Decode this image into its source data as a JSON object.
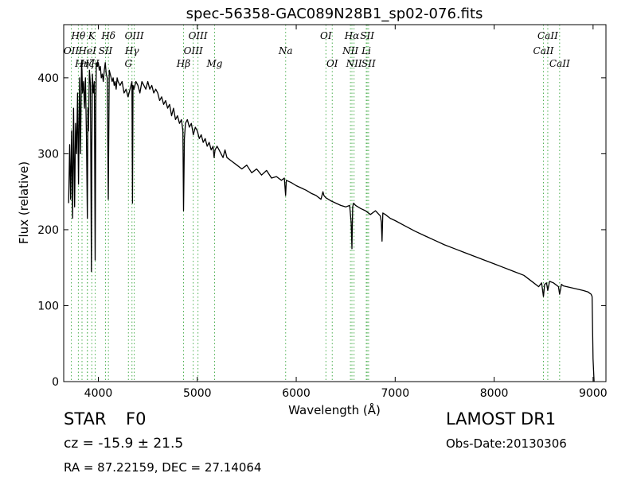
{
  "chart_data": {
    "type": "line",
    "title": "spec-56358-GAC089N28B1_sp02-076.fits",
    "xlabel": "Wavelength (Å)",
    "ylabel": "Flux (relative)",
    "xlim": [
      3650,
      9130
    ],
    "ylim": [
      0,
      470
    ],
    "xticks": [
      4000,
      5000,
      6000,
      7000,
      8000,
      9000
    ],
    "yticks": [
      0,
      100,
      200,
      300,
      400
    ],
    "grid": false,
    "legend": "none",
    "series": [
      {
        "color": "#000000",
        "x": [
          3700,
          3710,
          3720,
          3730,
          3740,
          3750,
          3760,
          3770,
          3780,
          3790,
          3800,
          3810,
          3820,
          3830,
          3835,
          3840,
          3850,
          3860,
          3870,
          3880,
          3889,
          3895,
          3900,
          3910,
          3920,
          3930,
          3934,
          3940,
          3950,
          3960,
          3968,
          3975,
          3980,
          3990,
          4000,
          4010,
          4020,
          4030,
          4040,
          4050,
          4060,
          4070,
          4080,
          4090,
          4101,
          4110,
          4120,
          4130,
          4140,
          4150,
          4160,
          4170,
          4180,
          4190,
          4200,
          4220,
          4240,
          4260,
          4280,
          4300,
          4320,
          4340,
          4345,
          4350,
          4360,
          4380,
          4400,
          4420,
          4440,
          4460,
          4480,
          4500,
          4520,
          4540,
          4560,
          4580,
          4600,
          4620,
          4640,
          4660,
          4680,
          4700,
          4720,
          4740,
          4760,
          4780,
          4800,
          4820,
          4840,
          4855,
          4861,
          4870,
          4880,
          4900,
          4920,
          4940,
          4960,
          4980,
          5000,
          5020,
          5040,
          5060,
          5080,
          5100,
          5120,
          5140,
          5160,
          5170,
          5175,
          5180,
          5200,
          5220,
          5240,
          5260,
          5280,
          5300,
          5350,
          5400,
          5450,
          5500,
          5550,
          5600,
          5650,
          5700,
          5750,
          5800,
          5850,
          5880,
          5893,
          5900,
          5950,
          6000,
          6050,
          6100,
          6150,
          6200,
          6250,
          6270,
          6280,
          6300,
          6350,
          6400,
          6450,
          6500,
          6540,
          6555,
          6563,
          6570,
          6580,
          6600,
          6650,
          6700,
          6750,
          6800,
          6850,
          6860,
          6867,
          6875,
          6900,
          6950,
          7000,
          7100,
          7200,
          7300,
          7400,
          7500,
          7600,
          7700,
          7800,
          7900,
          8000,
          8100,
          8200,
          8300,
          8400,
          8450,
          8480,
          8498,
          8510,
          8530,
          8542,
          8560,
          8600,
          8650,
          8662,
          8680,
          8700,
          8800,
          8900,
          8950,
          8970,
          8980,
          8990,
          9000,
          9010
        ],
        "values": [
          235,
          312,
          240,
          330,
          215,
          360,
          230,
          340,
          300,
          380,
          260,
          400,
          300,
          420,
          410,
          380,
          395,
          360,
          400,
          320,
          215,
          360,
          330,
          410,
          390,
          145,
          300,
          405,
          380,
          395,
          160,
          370,
          420,
          415,
          420,
          410,
          415,
          400,
          405,
          395,
          410,
          420,
          405,
          400,
          240,
          410,
          405,
          400,
          395,
          400,
          390,
          395,
          385,
          400,
          395,
          390,
          395,
          380,
          385,
          375,
          385,
          395,
          235,
          390,
          385,
          395,
          390,
          380,
          395,
          390,
          385,
          395,
          385,
          390,
          380,
          385,
          380,
          370,
          375,
          365,
          370,
          360,
          365,
          350,
          360,
          345,
          350,
          340,
          345,
          330,
          225,
          320,
          340,
          345,
          335,
          340,
          325,
          335,
          330,
          320,
          325,
          315,
          320,
          310,
          315,
          305,
          310,
          295,
          300,
          305,
          310,
          305,
          300,
          295,
          305,
          295,
          290,
          285,
          280,
          285,
          275,
          280,
          272,
          278,
          268,
          270,
          265,
          268,
          245,
          265,
          262,
          258,
          255,
          252,
          248,
          245,
          240,
          250,
          245,
          242,
          238,
          235,
          232,
          230,
          232,
          210,
          175,
          230,
          235,
          232,
          228,
          225,
          220,
          225,
          218,
          210,
          185,
          222,
          220,
          215,
          212,
          205,
          198,
          192,
          186,
          180,
          175,
          170,
          165,
          160,
          155,
          150,
          145,
          140,
          130,
          125,
          130,
          112,
          128,
          130,
          120,
          132,
          130,
          125,
          115,
          128,
          126,
          123,
          120,
          118,
          116,
          115,
          112,
          30,
          0
        ]
      }
    ],
    "emission_lines": [
      {
        "label": "OII",
        "x": 3727,
        "row": 2
      },
      {
        "label": "Hθ",
        "x": 3798,
        "row": 1
      },
      {
        "label": "Hη",
        "x": 3835,
        "row": 3
      },
      {
        "label": "Hζ",
        "x": 3889,
        "row": 3
      },
      {
        "label": "HeI",
        "x": 3889,
        "row": 2
      },
      {
        "label": "K",
        "x": 3934,
        "row": 1
      },
      {
        "label": "SII",
        "x": 4072,
        "row": 2
      },
      {
        "label": "H",
        "x": 3968,
        "row": 3
      },
      {
        "label": "Hδ",
        "x": 4102,
        "row": 1
      },
      {
        "label": "OIII",
        "x": 4363,
        "row": 1
      },
      {
        "label": "Hγ",
        "x": 4340,
        "row": 2
      },
      {
        "label": "G",
        "x": 4304,
        "row": 3
      },
      {
        "label": "Hβ",
        "x": 4861,
        "row": 3
      },
      {
        "label": "OIII",
        "x": 4959,
        "row": 2
      },
      {
        "label": "OIII",
        "x": 5007,
        "row": 1
      },
      {
        "label": "Mg",
        "x": 5175,
        "row": 3
      },
      {
        "label": "Na",
        "x": 5893,
        "row": 2
      },
      {
        "label": "OI",
        "x": 6300,
        "row": 1
      },
      {
        "label": "OI",
        "x": 6364,
        "row": 3
      },
      {
        "label": "NII",
        "x": 6548,
        "row": 2
      },
      {
        "label": "Hα",
        "x": 6563,
        "row": 1
      },
      {
        "label": "NII",
        "x": 6584,
        "row": 3
      },
      {
        "label": "SII",
        "x": 6717,
        "row": 1
      },
      {
        "label": "Li",
        "x": 6708,
        "row": 2
      },
      {
        "label": "SII",
        "x": 6731,
        "row": 3
      },
      {
        "label": "CaII",
        "x": 8498,
        "row": 2
      },
      {
        "label": "CaII",
        "x": 8542,
        "row": 1
      },
      {
        "label": "CaII",
        "x": 8662,
        "row": 3
      }
    ]
  },
  "info": {
    "object_class": "STAR",
    "subclass": "F0",
    "survey": "LAMOST DR1",
    "redshift": "cz = -15.9 ± 21.5",
    "obs_date": "Obs-Date:20130306",
    "coords": "RA = 87.22159, DEC = 27.14064"
  }
}
